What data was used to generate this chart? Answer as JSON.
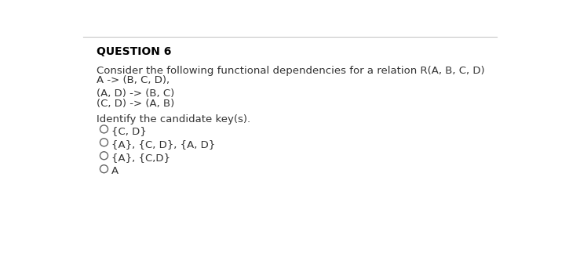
{
  "title": "QUESTION 6",
  "background_color": "#ffffff",
  "top_line_color": "#c8c8c8",
  "body_lines": [
    "Consider the following functional dependencies for a relation R(A, B, C, D)",
    "A -> (B, C, D),",
    "",
    "(A, D) -> (B, C)",
    "(C, D) -> (A, B)"
  ],
  "question": "Identify the candidate key(s).",
  "options": [
    "{C, D}",
    "{A}, {C, D}, {A, D}",
    "{A}, {C,D}",
    "A"
  ],
  "title_fontsize": 10,
  "body_fontsize": 9.5,
  "option_fontsize": 9.5,
  "text_color": "#333333",
  "title_color": "#000000",
  "circle_color": "#666666"
}
